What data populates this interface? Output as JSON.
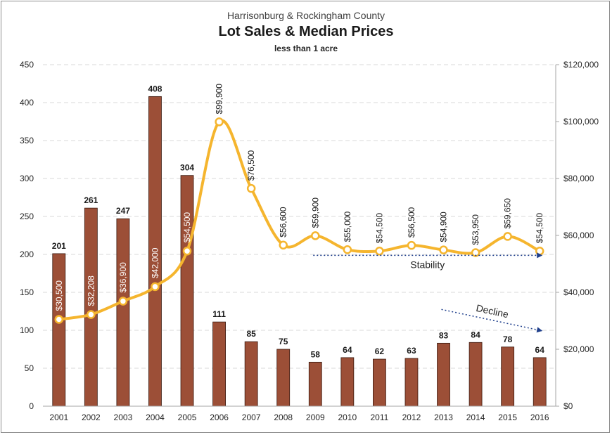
{
  "chart_data": {
    "type": "bar",
    "title_line1": "Harrisonburg & Rockingham County",
    "title": "Lot Sales & Median Prices",
    "subtitle": "less than 1 acre",
    "categories": [
      "2001",
      "2002",
      "2003",
      "2004",
      "2005",
      "2006",
      "2007",
      "2008",
      "2009",
      "2010",
      "2011",
      "2012",
      "2013",
      "2014",
      "2015",
      "2016"
    ],
    "series": [
      {
        "type": "bar",
        "axis": "left",
        "color": "#9c4f37",
        "values": [
          201,
          261,
          247,
          408,
          304,
          111,
          85,
          75,
          58,
          64,
          62,
          63,
          83,
          84,
          78,
          64
        ],
        "labels": [
          "201",
          "261",
          "247",
          "408",
          "304",
          "111",
          "85",
          "75",
          "58",
          "64",
          "62",
          "63",
          "83",
          "84",
          "78",
          "64"
        ]
      },
      {
        "type": "line",
        "axis": "right",
        "color": "#f5b52e",
        "values": [
          30500,
          32208,
          36900,
          42000,
          54500,
          99900,
          76500,
          56600,
          59900,
          55000,
          54500,
          56500,
          54900,
          53950,
          59650,
          54500
        ],
        "labels": [
          "$30,500",
          "$32,208",
          "$36,900",
          "$42,000",
          "$54,500",
          "$99,900",
          "$76,500",
          "$56,600",
          "$59,900",
          "$55,000",
          "$54,500",
          "$56,500",
          "$54,900",
          "$53,950",
          "$59,650",
          "$54,500"
        ]
      }
    ],
    "y_left": {
      "ylim": [
        0,
        450
      ],
      "ticks": [
        "0",
        "50",
        "100",
        "150",
        "200",
        "250",
        "300",
        "350",
        "400",
        "450"
      ]
    },
    "y_right": {
      "ylim": [
        0,
        120000
      ],
      "ticks": [
        "$0",
        "$20,000",
        "$40,000",
        "$60,000",
        "$80,000",
        "$100,000",
        "$120,000"
      ]
    },
    "grid": true,
    "annotations": [
      {
        "text": "Stability",
        "from": [
          "2009",
          53000
        ],
        "to": [
          "2016",
          53000
        ]
      },
      {
        "text": "Decline",
        "from": [
          "2013",
          34000
        ],
        "to": [
          "2016",
          26500
        ]
      }
    ],
    "colors": {
      "axis_text": "#262626",
      "grid": "#d9d9d9",
      "arrow": "#1f3f8c",
      "marker_fill": "#ffffff"
    }
  }
}
